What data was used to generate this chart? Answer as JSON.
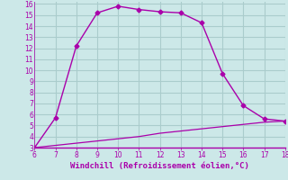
{
  "xlabel": "Windchill (Refroidissement éolien,°C)",
  "line1_x": [
    6,
    7,
    8,
    9,
    10,
    11,
    12,
    13,
    14,
    15,
    16,
    17,
    18
  ],
  "line1_y": [
    3.0,
    5.7,
    12.2,
    15.2,
    15.8,
    15.5,
    15.3,
    15.2,
    14.3,
    9.7,
    6.8,
    5.6,
    5.4
  ],
  "line2_x": [
    6,
    7,
    8,
    9,
    10,
    11,
    12,
    13,
    14,
    15,
    16,
    17,
    18
  ],
  "line2_y": [
    3.0,
    3.2,
    3.4,
    3.6,
    3.8,
    4.0,
    4.3,
    4.5,
    4.7,
    4.9,
    5.1,
    5.3,
    5.4
  ],
  "line_color": "#aa00aa",
  "bg_color": "#cce8e8",
  "grid_color": "#aacccc",
  "xlim": [
    6,
    18
  ],
  "ylim": [
    3,
    16
  ],
  "xticks": [
    6,
    7,
    8,
    9,
    10,
    11,
    12,
    13,
    14,
    15,
    16,
    17,
    18
  ],
  "yticks": [
    3,
    4,
    5,
    6,
    7,
    8,
    9,
    10,
    11,
    12,
    13,
    14,
    15,
    16
  ]
}
